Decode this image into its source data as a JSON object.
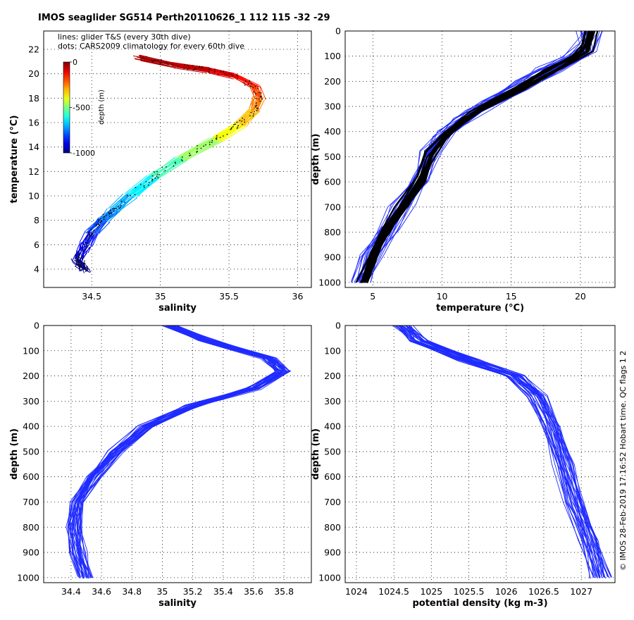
{
  "figure": {
    "title": "IMOS seaglider SG514 Perth20110626_1 112  115  -32  -29",
    "side_note": "© IMOS 28-Feb-2019 17:16:52 Hobart time. QC flags 1  2"
  },
  "chart_data": [
    {
      "id": "ts",
      "type": "line",
      "xlabel": "salinity",
      "ylabel": "temperature (°C)",
      "xlim": [
        34.15,
        36.1
      ],
      "ylim": [
        2.5,
        23.5
      ],
      "xticks": [
        34.5,
        35,
        35.5,
        36
      ],
      "yticks": [
        4,
        6,
        8,
        10,
        12,
        14,
        16,
        18,
        20,
        22
      ],
      "grid": true,
      "annotations": [
        "lines: glider T&S (every 30th dive)",
        "dots: CARS2009 climatology for every 60th dive"
      ],
      "colorbar": {
        "label": "depth (m)",
        "ticks": [
          0,
          -500,
          -1000
        ],
        "colormap": "jet",
        "range": [
          -1000,
          0
        ]
      },
      "series": [
        {
          "values": [
            {
              "x": 34.45,
              "y": 3.9
            },
            {
              "x": 34.42,
              "y": 4.3
            },
            {
              "x": 34.4,
              "y": 4.7
            },
            {
              "x": 34.42,
              "y": 5.3
            },
            {
              "x": 34.45,
              "y": 6.0
            },
            {
              "x": 34.5,
              "y": 7.0
            },
            {
              "x": 34.58,
              "y": 8.0
            },
            {
              "x": 34.66,
              "y": 8.8
            },
            {
              "x": 34.78,
              "y": 10.0
            },
            {
              "x": 34.95,
              "y": 11.5
            },
            {
              "x": 35.15,
              "y": 13.0
            },
            {
              "x": 35.4,
              "y": 14.6
            },
            {
              "x": 35.58,
              "y": 15.8
            },
            {
              "x": 35.68,
              "y": 17.0
            },
            {
              "x": 35.72,
              "y": 18.0
            },
            {
              "x": 35.68,
              "y": 19.0
            },
            {
              "x": 35.55,
              "y": 19.8
            },
            {
              "x": 35.35,
              "y": 20.3
            },
            {
              "x": 35.1,
              "y": 20.7
            },
            {
              "x": 34.85,
              "y": 21.3
            }
          ]
        }
      ]
    },
    {
      "id": "temp-depth",
      "type": "line",
      "xlabel": "temperature (°C)",
      "ylabel": "depth (m)",
      "xlim": [
        3,
        22.5
      ],
      "ylim": [
        1020,
        0
      ],
      "xticks": [
        5,
        10,
        15,
        20
      ],
      "yticks": [
        0,
        100,
        200,
        300,
        400,
        500,
        600,
        700,
        800,
        900,
        1000
      ],
      "grid": true,
      "series": [
        {
          "values": [
            {
              "x": 20.5,
              "y": 0
            },
            {
              "x": 20.3,
              "y": 50
            },
            {
              "x": 19.5,
              "y": 100
            },
            {
              "x": 17.5,
              "y": 150
            },
            {
              "x": 16.0,
              "y": 200
            },
            {
              "x": 13.5,
              "y": 280
            },
            {
              "x": 11.5,
              "y": 350
            },
            {
              "x": 10.0,
              "y": 420
            },
            {
              "x": 9.0,
              "y": 500
            },
            {
              "x": 8.3,
              "y": 600
            },
            {
              "x": 7.0,
              "y": 700
            },
            {
              "x": 5.8,
              "y": 800
            },
            {
              "x": 4.8,
              "y": 900
            },
            {
              "x": 4.2,
              "y": 1000
            }
          ]
        },
        {
          "values": [
            {
              "x": 20.8,
              "y": 0
            },
            {
              "x": 20.5,
              "y": 80
            },
            {
              "x": 18.0,
              "y": 160
            },
            {
              "x": 15.5,
              "y": 230
            },
            {
              "x": 12.5,
              "y": 320
            },
            {
              "x": 10.5,
              "y": 400
            },
            {
              "x": 9.2,
              "y": 480
            },
            {
              "x": 8.4,
              "y": 580
            },
            {
              "x": 7.2,
              "y": 690
            },
            {
              "x": 6.0,
              "y": 790
            },
            {
              "x": 5.0,
              "y": 890
            },
            {
              "x": 4.3,
              "y": 1000
            }
          ]
        }
      ]
    },
    {
      "id": "sal-depth",
      "type": "line",
      "xlabel": "salinity",
      "ylabel": "depth (m)",
      "xlim": [
        34.22,
        35.98
      ],
      "ylim": [
        1020,
        0
      ],
      "xticks": [
        34.4,
        34.6,
        34.8,
        35,
        35.2,
        35.4,
        35.6,
        35.8
      ],
      "yticks": [
        0,
        100,
        200,
        300,
        400,
        500,
        600,
        700,
        800,
        900,
        1000
      ],
      "grid": true,
      "series": [
        {
          "values": [
            {
              "x": 35.05,
              "y": 0
            },
            {
              "x": 35.3,
              "y": 60
            },
            {
              "x": 35.7,
              "y": 130
            },
            {
              "x": 35.8,
              "y": 180
            },
            {
              "x": 35.6,
              "y": 250
            },
            {
              "x": 35.2,
              "y": 320
            },
            {
              "x": 34.9,
              "y": 400
            },
            {
              "x": 34.7,
              "y": 500
            },
            {
              "x": 34.55,
              "y": 600
            },
            {
              "x": 34.45,
              "y": 700
            },
            {
              "x": 34.42,
              "y": 800
            },
            {
              "x": 34.45,
              "y": 900
            },
            {
              "x": 34.5,
              "y": 1000
            }
          ]
        }
      ]
    },
    {
      "id": "dens-depth",
      "type": "line",
      "xlabel": "potential density (kg m-3)",
      "ylabel": "depth (m)",
      "xlim": [
        1023.85,
        1027.45
      ],
      "ylim": [
        1020,
        0
      ],
      "xticks": [
        1024,
        1024.5,
        1025,
        1025.5,
        1026,
        1026.5,
        1027
      ],
      "yticks": [
        0,
        100,
        200,
        300,
        400,
        500,
        600,
        700,
        800,
        900,
        1000
      ],
      "grid": true,
      "series": [
        {
          "values": [
            {
              "x": 1024.6,
              "y": 0
            },
            {
              "x": 1024.8,
              "y": 60
            },
            {
              "x": 1025.5,
              "y": 140
            },
            {
              "x": 1026.1,
              "y": 200
            },
            {
              "x": 1026.4,
              "y": 280
            },
            {
              "x": 1026.6,
              "y": 400
            },
            {
              "x": 1026.75,
              "y": 550
            },
            {
              "x": 1026.9,
              "y": 700
            },
            {
              "x": 1027.1,
              "y": 850
            },
            {
              "x": 1027.25,
              "y": 1000
            }
          ]
        }
      ]
    }
  ]
}
